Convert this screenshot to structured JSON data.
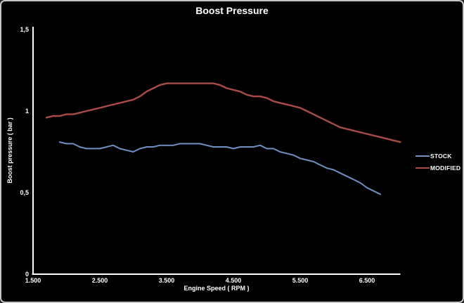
{
  "title": "Boost Pressure",
  "colors": {
    "background": "#000000",
    "frame_border": "#c6c6c6",
    "axis": "#ffffff",
    "text": "#ffffff",
    "stock_line": "#6e90c3",
    "modified_line": "#a94c48"
  },
  "legend": {
    "stock_label": "STOCK",
    "modified_label": "MODIFIED"
  },
  "chart_data": {
    "type": "line",
    "title": "Boost Pressure",
    "xlabel": "Engine Speed ( RPM )",
    "ylabel": "Boost pressure ( bar )",
    "xlim": [
      1500,
      7000
    ],
    "ylim": [
      0,
      1.5
    ],
    "grid": false,
    "legend_position": "right",
    "x_ticks": [
      {
        "value": 1500,
        "label": "1.500"
      },
      {
        "value": 2500,
        "label": "2.500"
      },
      {
        "value": 3500,
        "label": "3.500"
      },
      {
        "value": 4500,
        "label": "4.500"
      },
      {
        "value": 5500,
        "label": "5.500"
      },
      {
        "value": 6500,
        "label": "6.500"
      }
    ],
    "y_ticks": [
      {
        "value": 0,
        "label": "0"
      },
      {
        "value": 0.5,
        "label": "0,5"
      },
      {
        "value": 1,
        "label": "1"
      },
      {
        "value": 1.5,
        "label": "1,5"
      }
    ],
    "series": [
      {
        "name": "STOCK",
        "color": "#6e90c3",
        "width": 2,
        "x": [
          1900,
          2000,
          2100,
          2200,
          2300,
          2400,
          2500,
          2600,
          2700,
          2800,
          2900,
          3000,
          3100,
          3200,
          3300,
          3400,
          3500,
          3600,
          3700,
          3800,
          3900,
          4000,
          4100,
          4200,
          4300,
          4400,
          4500,
          4600,
          4700,
          4800,
          4900,
          5000,
          5100,
          5200,
          5300,
          5400,
          5500,
          5600,
          5700,
          5800,
          5900,
          6000,
          6100,
          6200,
          6300,
          6400,
          6500,
          6600,
          6700
        ],
        "y": [
          0.81,
          0.8,
          0.8,
          0.78,
          0.77,
          0.77,
          0.77,
          0.78,
          0.79,
          0.77,
          0.76,
          0.75,
          0.77,
          0.78,
          0.78,
          0.79,
          0.79,
          0.79,
          0.8,
          0.8,
          0.8,
          0.8,
          0.79,
          0.78,
          0.78,
          0.78,
          0.77,
          0.78,
          0.78,
          0.78,
          0.79,
          0.77,
          0.77,
          0.75,
          0.74,
          0.73,
          0.71,
          0.7,
          0.69,
          0.67,
          0.65,
          0.64,
          0.62,
          0.6,
          0.58,
          0.56,
          0.53,
          0.51,
          0.49
        ]
      },
      {
        "name": "MODIFIED",
        "color": "#a94c48",
        "width": 2.4,
        "x": [
          1700,
          1800,
          1900,
          2000,
          2100,
          2200,
          2300,
          2400,
          2500,
          2600,
          2700,
          2800,
          2900,
          3000,
          3100,
          3200,
          3300,
          3400,
          3500,
          3600,
          3700,
          3800,
          3900,
          4000,
          4100,
          4200,
          4300,
          4400,
          4500,
          4600,
          4700,
          4800,
          4900,
          5000,
          5100,
          5200,
          5300,
          5400,
          5500,
          5600,
          5700,
          5800,
          5900,
          6000,
          6100,
          6200,
          6300,
          6400,
          6500,
          6600,
          6700,
          6800,
          6900,
          7000
        ],
        "y": [
          0.96,
          0.97,
          0.97,
          0.98,
          0.98,
          0.99,
          1.0,
          1.01,
          1.02,
          1.03,
          1.04,
          1.05,
          1.06,
          1.07,
          1.09,
          1.12,
          1.14,
          1.16,
          1.17,
          1.17,
          1.17,
          1.17,
          1.17,
          1.17,
          1.17,
          1.17,
          1.16,
          1.14,
          1.13,
          1.12,
          1.1,
          1.09,
          1.09,
          1.08,
          1.06,
          1.05,
          1.04,
          1.03,
          1.02,
          1.0,
          0.98,
          0.96,
          0.94,
          0.92,
          0.9,
          0.89,
          0.88,
          0.87,
          0.86,
          0.85,
          0.84,
          0.83,
          0.82,
          0.81
        ]
      }
    ]
  }
}
